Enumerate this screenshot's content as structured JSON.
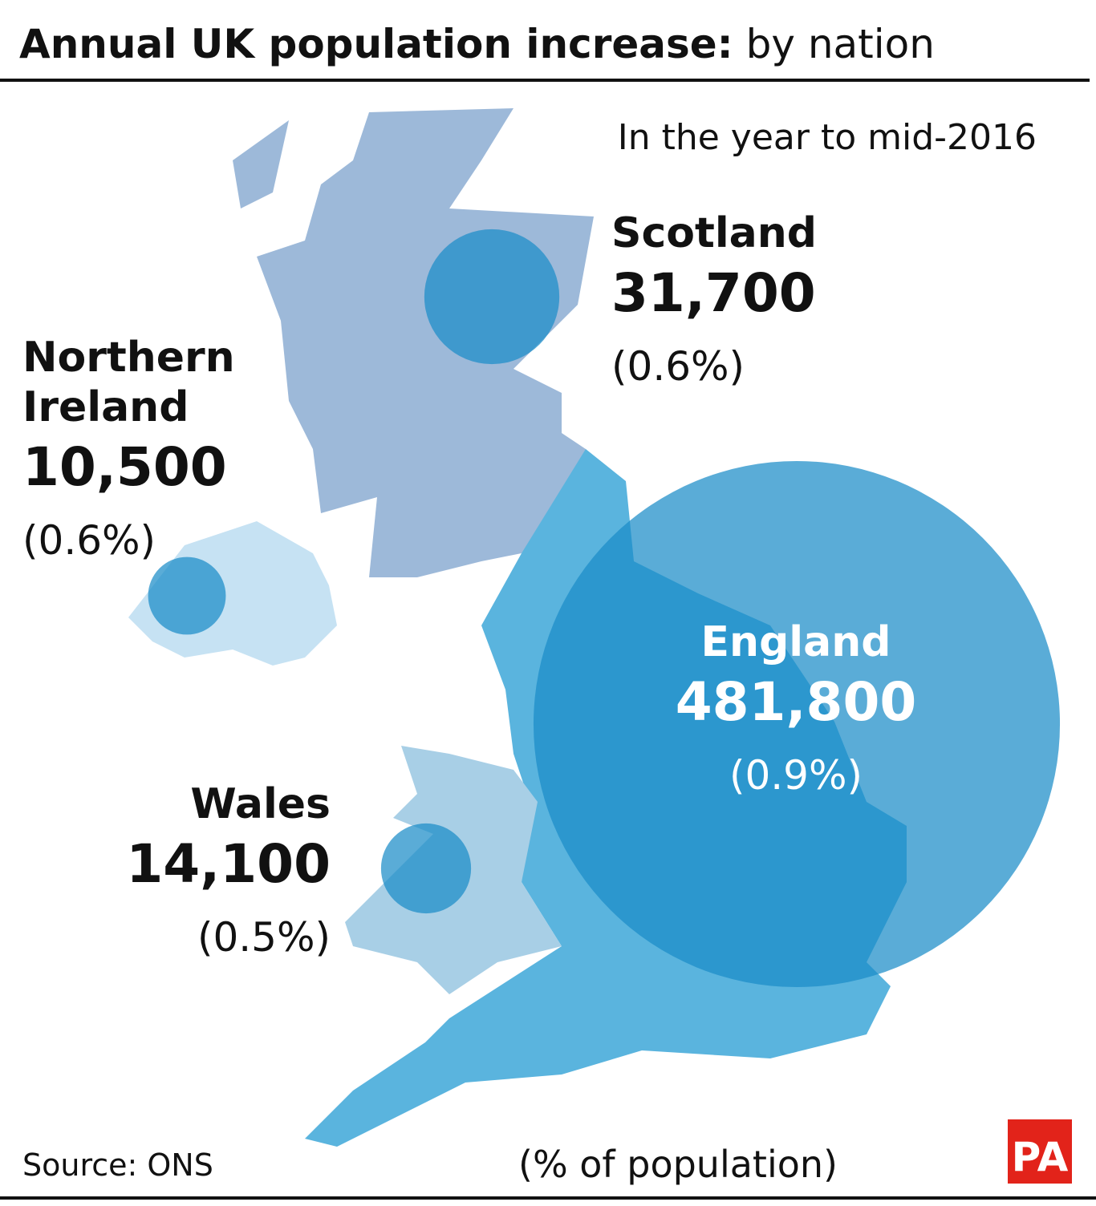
{
  "header": {
    "title_bold": "Annual UK population increase:",
    "title_regular": "by nation",
    "subtitle": "In the year to mid-2016"
  },
  "nations": [
    {
      "name": "Scotland",
      "value": 31700,
      "value_label": "31,700",
      "share_label": "(0.6%)"
    },
    {
      "name": "Northern Ireland",
      "value": 10500,
      "value_label": "10,500",
      "share_label": "(0.6%)"
    },
    {
      "name": "England",
      "value": 481800,
      "value_label": "481,800",
      "share_label": "(0.9%)"
    },
    {
      "name": "Wales",
      "value": 14100,
      "value_label": "14,100",
      "share_label": "(0.5%)"
    }
  ],
  "footer": {
    "source": "Source: ONS",
    "note": "(% of population)",
    "logo": "PA"
  }
}
